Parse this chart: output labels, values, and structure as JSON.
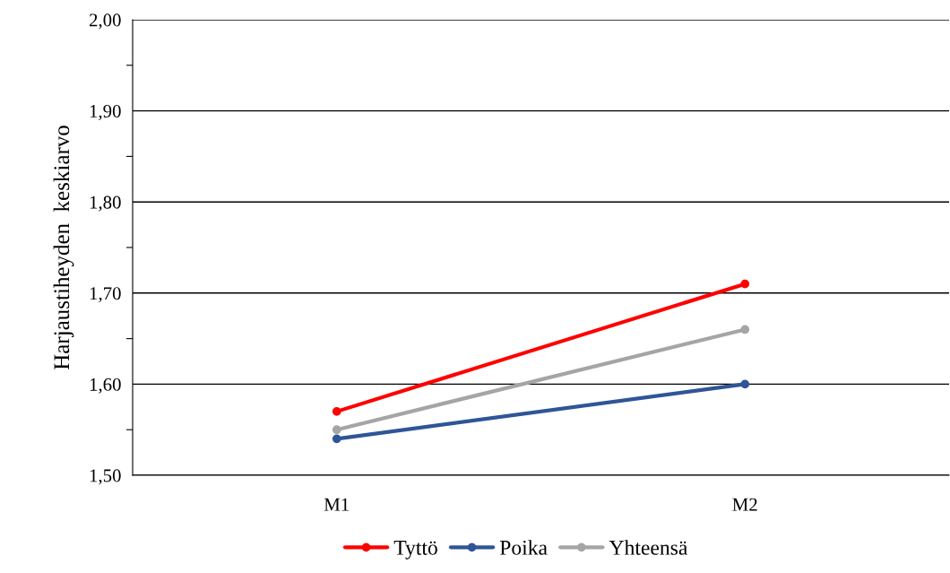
{
  "chart_data": {
    "type": "line",
    "ylabel": "Harjaustiheyden  keskiarvo",
    "categories": [
      "M1",
      "M2"
    ],
    "series": [
      {
        "name": "Tyttö",
        "color": "#ff0000",
        "values": [
          1.57,
          1.71
        ]
      },
      {
        "name": "Poika",
        "color": "#2f5597",
        "values": [
          1.54,
          1.6
        ]
      },
      {
        "name": "Yhteensä",
        "color": "#a5a5a5",
        "values": [
          1.55,
          1.66
        ]
      }
    ],
    "ylim": [
      1.5,
      2.0
    ],
    "yticks": [
      {
        "value": 1.5,
        "label": "1,50"
      },
      {
        "value": 1.55,
        "label": null
      },
      {
        "value": 1.6,
        "label": "1,60"
      },
      {
        "value": 1.65,
        "label": null
      },
      {
        "value": 1.7,
        "label": "1,70"
      },
      {
        "value": 1.75,
        "label": null
      },
      {
        "value": 1.8,
        "label": "1,80"
      },
      {
        "value": 1.85,
        "label": null
      },
      {
        "value": 1.9,
        "label": "1,90"
      },
      {
        "value": 1.95,
        "label": null
      },
      {
        "value": 2.0,
        "label": "2,00"
      }
    ],
    "grid": "y",
    "legend": "bottom",
    "marker": "circle",
    "line_style": "solid"
  }
}
